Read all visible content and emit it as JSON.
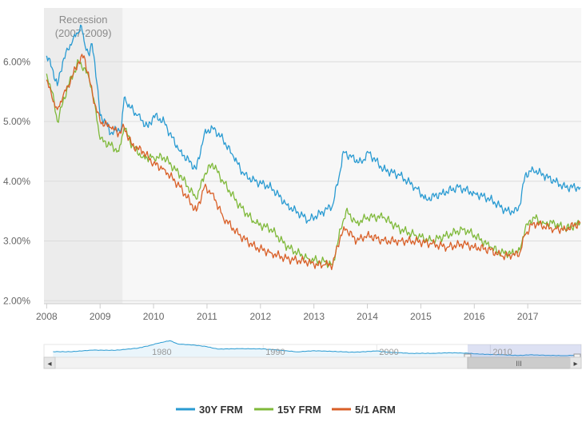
{
  "chart_data": {
    "type": "line",
    "x_unit": "year",
    "xlim": [
      2007.95,
      2018.0
    ],
    "ylim": [
      1.95,
      6.9
    ],
    "y_ticks": [
      "2.00%",
      "3.00%",
      "4.00%",
      "5.00%",
      "6.00%"
    ],
    "y_tick_values": [
      2,
      3,
      4,
      5,
      6
    ],
    "x_ticks": [
      "2008",
      "2009",
      "2010",
      "2011",
      "2012",
      "2013",
      "2014",
      "2015",
      "2016",
      "2017"
    ],
    "x_tick_values": [
      2008,
      2009,
      2010,
      2011,
      2012,
      2013,
      2014,
      2015,
      2016,
      2017
    ],
    "band": {
      "label_line1": "Recession",
      "label_line2": "(2007-2009)",
      "from": 2007.95,
      "to": 2009.42,
      "color": "#ececec"
    },
    "series": [
      {
        "name": "30Y FRM",
        "color": "#2a9bd2",
        "x": [
          2008.0,
          2008.1,
          2008.2,
          2008.3,
          2008.4,
          2008.5,
          2008.6,
          2008.65,
          2008.7,
          2008.8,
          2008.85,
          2008.9,
          2009.0,
          2009.1,
          2009.2,
          2009.3,
          2009.4,
          2009.45,
          2009.5,
          2009.7,
          2009.9,
          2010.0,
          2010.2,
          2010.3,
          2010.5,
          2010.8,
          2010.95,
          2011.1,
          2011.3,
          2011.5,
          2011.7,
          2011.9,
          2012.2,
          2012.5,
          2012.9,
          2013.2,
          2013.35,
          2013.5,
          2013.55,
          2013.7,
          2013.9,
          2014.0,
          2014.3,
          2014.6,
          2014.9,
          2015.1,
          2015.4,
          2015.7,
          2016.0,
          2016.3,
          2016.6,
          2016.8,
          2016.85,
          2016.95,
          2017.1,
          2017.3,
          2017.5,
          2017.7,
          2017.98
        ],
        "values": [
          6.1,
          5.9,
          5.6,
          6.0,
          6.2,
          6.4,
          6.5,
          6.6,
          6.35,
          6.1,
          6.3,
          6.0,
          5.1,
          5.0,
          4.8,
          4.85,
          4.9,
          5.4,
          5.3,
          5.1,
          4.9,
          5.1,
          5.0,
          4.8,
          4.5,
          4.2,
          4.8,
          4.9,
          4.7,
          4.4,
          4.1,
          4.0,
          3.9,
          3.6,
          3.35,
          3.5,
          3.6,
          4.2,
          4.5,
          4.4,
          4.3,
          4.5,
          4.2,
          4.1,
          3.9,
          3.7,
          3.8,
          3.9,
          3.8,
          3.7,
          3.5,
          3.5,
          3.6,
          4.1,
          4.2,
          4.1,
          4.0,
          3.9,
          3.9
        ]
      },
      {
        "name": "15Y FRM",
        "color": "#7fb93a",
        "x": [
          2008.0,
          2008.1,
          2008.2,
          2008.3,
          2008.4,
          2008.5,
          2008.6,
          2008.7,
          2008.8,
          2008.9,
          2009.0,
          2009.2,
          2009.35,
          2009.45,
          2009.6,
          2009.8,
          2010.0,
          2010.2,
          2010.5,
          2010.8,
          2010.95,
          2011.1,
          2011.3,
          2011.6,
          2011.9,
          2012.2,
          2012.5,
          2012.9,
          2013.2,
          2013.35,
          2013.5,
          2013.6,
          2013.8,
          2014.0,
          2014.3,
          2014.6,
          2014.9,
          2015.2,
          2015.5,
          2015.8,
          2016.0,
          2016.3,
          2016.5,
          2016.7,
          2016.85,
          2016.95,
          2017.1,
          2017.3,
          2017.5,
          2017.7,
          2017.98
        ],
        "values": [
          5.8,
          5.5,
          5.0,
          5.3,
          5.6,
          5.8,
          6.0,
          5.9,
          5.7,
          5.3,
          4.7,
          4.6,
          4.5,
          4.9,
          4.6,
          4.4,
          4.4,
          4.4,
          4.1,
          3.7,
          4.1,
          4.3,
          4.0,
          3.6,
          3.3,
          3.2,
          2.9,
          2.7,
          2.65,
          2.6,
          3.2,
          3.5,
          3.3,
          3.4,
          3.4,
          3.2,
          3.1,
          3.0,
          3.1,
          3.2,
          3.1,
          2.9,
          2.8,
          2.8,
          2.85,
          3.2,
          3.4,
          3.3,
          3.3,
          3.2,
          3.3
        ]
      },
      {
        "name": "5/1 ARM",
        "color": "#d95f27",
        "x": [
          2008.0,
          2008.1,
          2008.2,
          2008.3,
          2008.4,
          2008.5,
          2008.6,
          2008.7,
          2008.8,
          2008.9,
          2009.0,
          2009.2,
          2009.35,
          2009.45,
          2009.6,
          2009.8,
          2010.0,
          2010.2,
          2010.5,
          2010.8,
          2010.95,
          2011.1,
          2011.3,
          2011.6,
          2011.9,
          2012.2,
          2012.5,
          2012.9,
          2013.0,
          2013.2,
          2013.35,
          2013.5,
          2013.6,
          2013.8,
          2014.0,
          2014.3,
          2014.6,
          2014.9,
          2015.2,
          2015.5,
          2015.8,
          2016.0,
          2016.3,
          2016.5,
          2016.7,
          2016.85,
          2016.95,
          2017.1,
          2017.3,
          2017.5,
          2017.7,
          2017.98
        ],
        "values": [
          5.7,
          5.4,
          5.2,
          5.4,
          5.6,
          5.8,
          6.0,
          6.1,
          5.7,
          5.3,
          5.0,
          4.9,
          4.8,
          4.9,
          4.6,
          4.5,
          4.3,
          4.2,
          3.9,
          3.5,
          3.9,
          3.8,
          3.4,
          3.1,
          2.9,
          2.8,
          2.7,
          2.65,
          2.6,
          2.6,
          2.6,
          3.1,
          3.2,
          3.0,
          3.1,
          3.0,
          3.0,
          3.0,
          2.95,
          2.9,
          2.95,
          2.9,
          2.85,
          2.75,
          2.75,
          2.8,
          3.1,
          3.3,
          3.25,
          3.2,
          3.2,
          3.3
        ]
      }
    ],
    "navigator": {
      "x_ticks": [
        "1980",
        "1990",
        "2000",
        "2010"
      ],
      "x_tick_values": [
        1980,
        1990,
        2000,
        2010
      ],
      "xlim": [
        1970.7,
        2018.0
      ],
      "ylim": [
        2,
        20
      ],
      "selected_range": [
        2008,
        2018
      ],
      "line_color": "#2a9bd2",
      "series": {
        "x": [
          1971.5,
          1973,
          1975,
          1977,
          1979,
          1980,
          1981,
          1981.8,
          1982.5,
          1984,
          1985,
          1986,
          1988,
          1990,
          1992,
          1993,
          1994.5,
          1996,
          1998,
          2000,
          2001,
          2003,
          2005,
          2006.5,
          2008,
          2009,
          2011,
          2012.5,
          2013.5,
          2015,
          2016.5,
          2017.5
        ],
        "values": [
          7.5,
          7.4,
          9.0,
          8.8,
          11.0,
          13.5,
          16.5,
          18.2,
          15.0,
          13.8,
          12.5,
          10.0,
          10.4,
          10.2,
          8.4,
          7.3,
          8.4,
          7.8,
          6.9,
          8.2,
          7.0,
          5.8,
          5.9,
          6.4,
          6.0,
          5.1,
          4.5,
          3.7,
          4.4,
          3.9,
          3.6,
          4.0
        ]
      }
    }
  },
  "scroll": {
    "left_arrow": "◂",
    "right_arrow": "▸",
    "grip": "III"
  }
}
